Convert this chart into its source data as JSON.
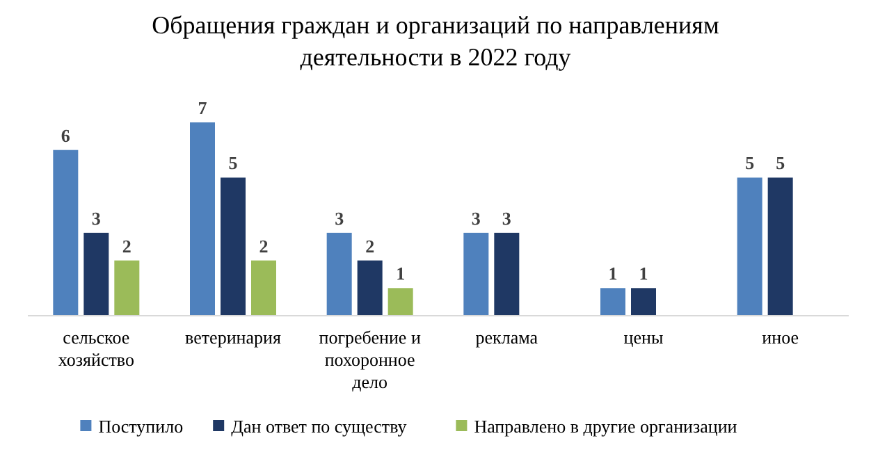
{
  "chart_data": {
    "type": "bar",
    "title": "Обращения граждан и организаций по направлениям деятельности в 2022 году",
    "categories": [
      "сельское хозяйство",
      "ветеринария",
      "погребение и похоронное дело",
      "реклама",
      "цены",
      "иное"
    ],
    "series": [
      {
        "name": "Поступило",
        "color": "#4f81bd",
        "values": [
          6,
          7,
          3,
          3,
          1,
          5
        ]
      },
      {
        "name": "Дан ответ по существу",
        "color": "#1f3864",
        "values": [
          3,
          5,
          2,
          3,
          1,
          5
        ]
      },
      {
        "name": "Направлено в другие организации",
        "color": "#9bbb59",
        "values": [
          2,
          2,
          1,
          null,
          null,
          null
        ]
      }
    ],
    "data_labels": true,
    "legend": "bottom",
    "grid": false
  }
}
